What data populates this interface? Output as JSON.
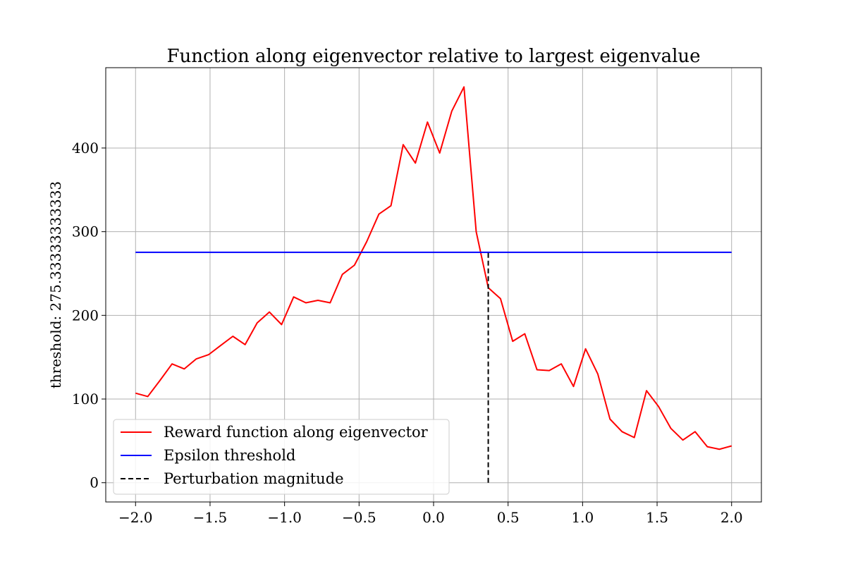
{
  "chart_data": {
    "type": "line",
    "title": "Function along eigenvector relative to largest eigenvalue",
    "xlabel": "",
    "ylabel": "threshold: 275.33333333333",
    "xlim": [
      -2.2,
      2.2
    ],
    "ylim": [
      -23,
      496
    ],
    "x_ticks": [
      -2.0,
      -1.5,
      -1.0,
      -0.5,
      0.0,
      0.5,
      1.0,
      1.5,
      2.0
    ],
    "x_tick_labels": [
      "−2.0",
      "−1.5",
      "−1.0",
      "−0.5",
      "0.0",
      "0.5",
      "1.0",
      "1.5",
      "2.0"
    ],
    "y_ticks": [
      0,
      100,
      200,
      300,
      400
    ],
    "y_tick_labels": [
      "0",
      "100",
      "200",
      "300",
      "400"
    ],
    "grid": true,
    "legend_position": "lower-left",
    "series": [
      {
        "name": "Reward function along eigenvector",
        "color": "#ff0000",
        "style": "solid",
        "x": [
          -2.0,
          -1.918,
          -1.837,
          -1.755,
          -1.673,
          -1.592,
          -1.51,
          -1.429,
          -1.347,
          -1.265,
          -1.184,
          -1.102,
          -1.02,
          -0.939,
          -0.857,
          -0.776,
          -0.694,
          -0.612,
          -0.531,
          -0.449,
          -0.367,
          -0.286,
          -0.204,
          -0.122,
          -0.041,
          0.041,
          0.122,
          0.204,
          0.286,
          0.367,
          0.449,
          0.531,
          0.612,
          0.694,
          0.776,
          0.857,
          0.939,
          1.02,
          1.102,
          1.184,
          1.265,
          1.347,
          1.429,
          1.51,
          1.592,
          1.673,
          1.755,
          1.837,
          1.918,
          2.0
        ],
        "values": [
          107,
          103,
          122,
          142,
          136,
          148,
          153,
          164,
          175,
          165,
          191,
          204,
          189,
          222,
          215,
          218,
          215,
          249,
          260,
          288,
          321,
          331,
          404,
          382,
          431,
          394,
          444,
          473,
          300,
          233,
          220,
          169,
          178,
          135,
          134,
          142,
          115,
          160,
          130,
          76,
          61,
          54,
          110,
          91,
          65,
          51,
          61,
          43,
          40,
          44
        ]
      },
      {
        "name": "Epsilon threshold",
        "color": "#0000ff",
        "style": "solid",
        "x": [
          -2.0,
          2.0
        ],
        "values": [
          275.33,
          275.33
        ]
      },
      {
        "name": "Perturbation magnitude",
        "color": "#000000",
        "style": "dashed",
        "x": [
          0.367,
          0.367
        ],
        "values": [
          0,
          275.33
        ]
      }
    ]
  }
}
